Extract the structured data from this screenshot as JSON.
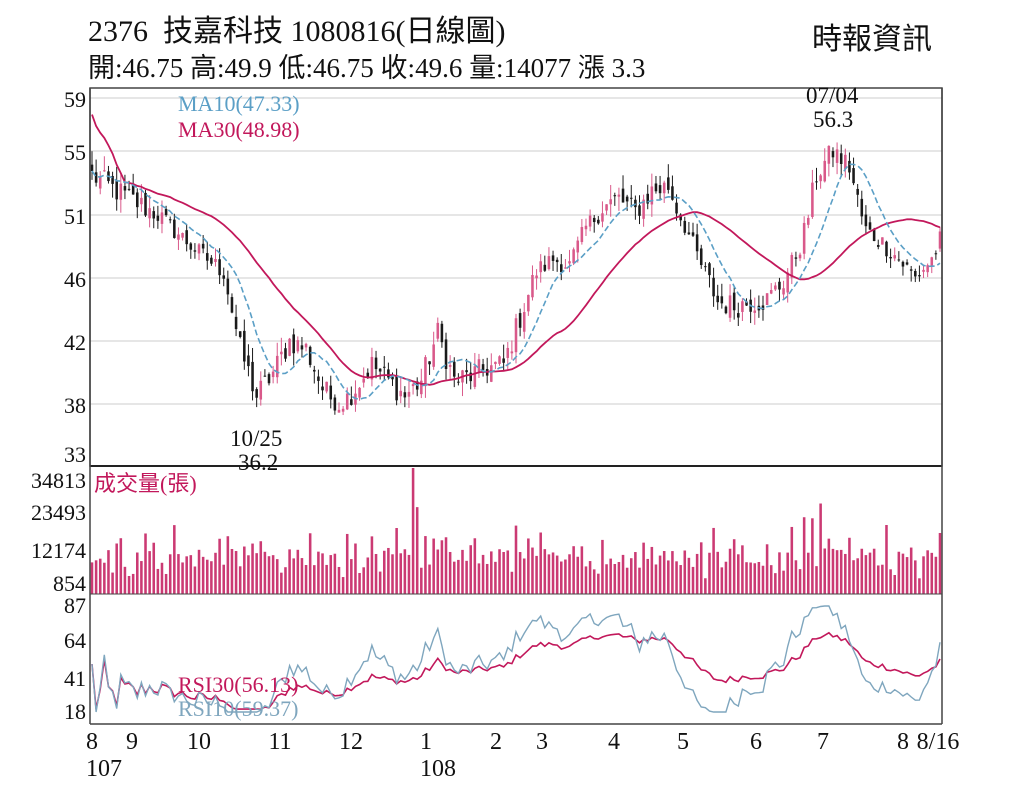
{
  "header": {
    "code": "2376",
    "name": "技嘉科技",
    "date": "1080816",
    "chart_kind": "(日線圖)",
    "source": "時報資訊",
    "stats": [
      {
        "label": "開:",
        "value": "46.75"
      },
      {
        "label": "高:",
        "value": "49.9"
      },
      {
        "label": "低:",
        "value": "46.75"
      },
      {
        "label": "收:",
        "value": "49.6"
      },
      {
        "label": "量:",
        "value": "14077"
      },
      {
        "label": "漲",
        "value": "3.3"
      }
    ]
  },
  "colors": {
    "up": "#d9598a",
    "down": "#1a1a1a",
    "ma10": "#5b9fc6",
    "ma30": "#c2185b",
    "volume": "#c2185b",
    "rsi30": "#c2185b",
    "rsi10": "#7fa6be",
    "grid": "#cccccc"
  },
  "chart_data": [
    {
      "type": "candlestick",
      "panel": "price",
      "yticks": [
        "59",
        "55",
        "51",
        "46",
        "42",
        "38",
        "33"
      ],
      "ylim": [
        33,
        59
      ],
      "x_months": [
        "8",
        "9",
        "10",
        "11",
        "12",
        "1",
        "2",
        "3",
        "4",
        "5",
        "6",
        "7",
        "8",
        "8/16"
      ],
      "x_years": [
        "107",
        "108"
      ],
      "legend": [
        {
          "name": "MA10",
          "value": "(47.33)"
        },
        {
          "name": "MA30",
          "value": "(48.98)"
        }
      ],
      "annotations": [
        {
          "date": "10/25",
          "value": "36.2"
        },
        {
          "date": "07/04",
          "value": "56.3"
        }
      ],
      "close_keypoints": [
        [
          0,
          53.5
        ],
        [
          6,
          52.5
        ],
        [
          16,
          51
        ],
        [
          26,
          48
        ],
        [
          32,
          46.5
        ],
        [
          36,
          41.5
        ],
        [
          40,
          38.5
        ],
        [
          44,
          40
        ],
        [
          48,
          42
        ],
        [
          52,
          41.5
        ],
        [
          56,
          39
        ],
        [
          60,
          37.8
        ],
        [
          64,
          39
        ],
        [
          68,
          40.5
        ],
        [
          72,
          39.5
        ],
        [
          76,
          38.5
        ],
        [
          80,
          39.5
        ],
        [
          84,
          42.5
        ],
        [
          88,
          39.5
        ],
        [
          92,
          39.8
        ],
        [
          96,
          40.3
        ],
        [
          100,
          40.5
        ],
        [
          104,
          43.5
        ],
        [
          108,
          46.5
        ],
        [
          112,
          47.5
        ],
        [
          116,
          47
        ],
        [
          120,
          50
        ],
        [
          124,
          51.5
        ],
        [
          128,
          52
        ],
        [
          132,
          51.2
        ],
        [
          136,
          52.5
        ],
        [
          140,
          52.8
        ],
        [
          144,
          50.2
        ],
        [
          148,
          47
        ],
        [
          152,
          44.5
        ],
        [
          156,
          44.2
        ],
        [
          160,
          44.5
        ],
        [
          164,
          44.6
        ],
        [
          168,
          45.8
        ],
        [
          172,
          48.5
        ],
        [
          176,
          53.5
        ],
        [
          180,
          55
        ],
        [
          184,
          54
        ],
        [
          188,
          49.8
        ],
        [
          192,
          48.8
        ],
        [
          196,
          47.5
        ],
        [
          200,
          46
        ],
        [
          204,
          47.5
        ],
        [
          206,
          49
        ]
      ]
    },
    {
      "type": "bar",
      "panel": "volume",
      "label": "成交量(張)",
      "yticks": [
        "34813",
        "23493",
        "12174",
        "854"
      ],
      "ylim": [
        854,
        34813
      ]
    },
    {
      "type": "line",
      "panel": "rsi",
      "yticks": [
        "87",
        "64",
        "41",
        "18"
      ],
      "ylim": [
        18,
        87
      ],
      "series": [
        {
          "name": "RSI30",
          "value": "(56.13)"
        },
        {
          "name": "RSI10",
          "value": "(59.37)"
        }
      ]
    }
  ]
}
